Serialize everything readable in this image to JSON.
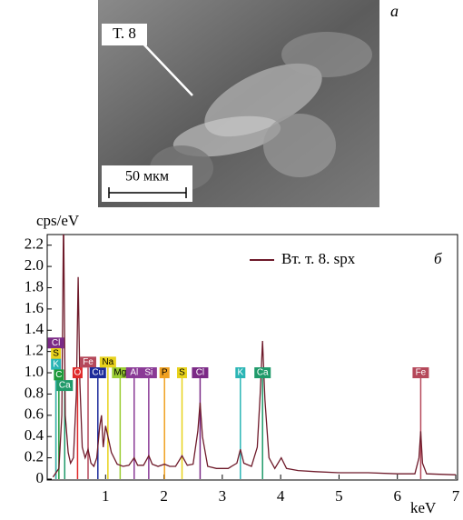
{
  "image": {
    "label": "Т. 8",
    "scale": "50 мкм",
    "panel": "а"
  },
  "chart_data": {
    "type": "line",
    "ylabel": "cps/eV",
    "xlabel": "keV",
    "panel": "б",
    "xlim": [
      0,
      7
    ],
    "xticks": [
      1,
      2,
      3,
      4,
      5,
      6,
      7
    ],
    "ylim": [
      0,
      2.3
    ],
    "yticks": [
      0,
      0.2,
      0.4,
      0.6,
      0.8,
      {
        "value": 1,
        "label": "1.0"
      },
      1.2,
      1.4,
      1.6,
      1.8,
      {
        "value": 2,
        "label": "2.0"
      },
      2.2
    ],
    "series": [
      {
        "name": "Вт. т. 8. spx",
        "color": "#6e1a2a",
        "x": [
          0.1,
          0.2,
          0.25,
          0.28,
          0.31,
          0.36,
          0.4,
          0.45,
          0.5,
          0.53,
          0.56,
          0.6,
          0.65,
          0.7,
          0.75,
          0.8,
          0.85,
          0.9,
          0.93,
          0.96,
          1.0,
          1.04,
          1.1,
          1.2,
          1.25,
          1.3,
          1.4,
          1.49,
          1.55,
          1.65,
          1.74,
          1.8,
          1.9,
          2.01,
          2.1,
          2.2,
          2.31,
          2.4,
          2.5,
          2.58,
          2.62,
          2.66,
          2.75,
          2.9,
          3.1,
          3.25,
          3.31,
          3.37,
          3.5,
          3.6,
          3.65,
          3.69,
          3.73,
          3.8,
          3.9,
          4.01,
          4.1,
          4.3,
          4.6,
          5.0,
          5.5,
          6.0,
          6.3,
          6.37,
          6.4,
          6.43,
          6.5,
          7.0
        ],
        "values": [
          0.02,
          0.1,
          0.6,
          2.5,
          0.6,
          0.25,
          0.15,
          0.2,
          0.8,
          1.9,
          0.9,
          0.3,
          0.2,
          0.28,
          0.15,
          0.12,
          0.2,
          0.5,
          0.6,
          0.3,
          0.5,
          0.4,
          0.25,
          0.14,
          0.13,
          0.12,
          0.13,
          0.2,
          0.13,
          0.13,
          0.22,
          0.14,
          0.12,
          0.14,
          0.12,
          0.12,
          0.22,
          0.13,
          0.14,
          0.45,
          0.72,
          0.4,
          0.12,
          0.1,
          0.1,
          0.15,
          0.28,
          0.15,
          0.12,
          0.3,
          0.8,
          1.3,
          0.75,
          0.2,
          0.1,
          0.2,
          0.1,
          0.08,
          0.07,
          0.06,
          0.06,
          0.05,
          0.05,
          0.2,
          0.45,
          0.15,
          0.05,
          0.04
        ]
      }
    ],
    "elements": [
      {
        "label": "Cl",
        "x": 0.15,
        "color": "#7b2a86"
      },
      {
        "label": "S",
        "x": 0.15,
        "color": "#e8d21c"
      },
      {
        "label": "K",
        "x": 0.15,
        "color": "#2bb5b5"
      },
      {
        "label": "C",
        "x": 0.2,
        "color": "#1e9a3a"
      },
      {
        "label": "Ca",
        "x": 0.3,
        "color": "#1f9a6a"
      },
      {
        "label": "O",
        "x": 0.52,
        "color": "#e02a2a"
      },
      {
        "label": "Fe",
        "x": 0.7,
        "color": "#b5485a"
      },
      {
        "label": "Cu",
        "x": 0.93,
        "color": "#1c2a9a"
      },
      {
        "label": "Na",
        "x": 1.04,
        "color": "#e8d21c"
      },
      {
        "label": "Mg",
        "x": 1.25,
        "color": "#9acd32"
      },
      {
        "label": "Al",
        "x": 1.49,
        "color": "#8a3a96"
      },
      {
        "label": "Si",
        "x": 1.74,
        "color": "#8a3a96"
      },
      {
        "label": "P",
        "x": 2.01,
        "color": "#f0a020"
      },
      {
        "label": "S",
        "x": 2.31,
        "color": "#e8d21c"
      },
      {
        "label": "Cl",
        "x": 2.62,
        "color": "#7b2a86"
      },
      {
        "label": "K",
        "x": 3.31,
        "color": "#2bb5b5"
      },
      {
        "label": "Ca",
        "x": 3.69,
        "color": "#1f9a6a"
      },
      {
        "label": "Fe",
        "x": 6.4,
        "color": "#b5485a"
      }
    ]
  }
}
